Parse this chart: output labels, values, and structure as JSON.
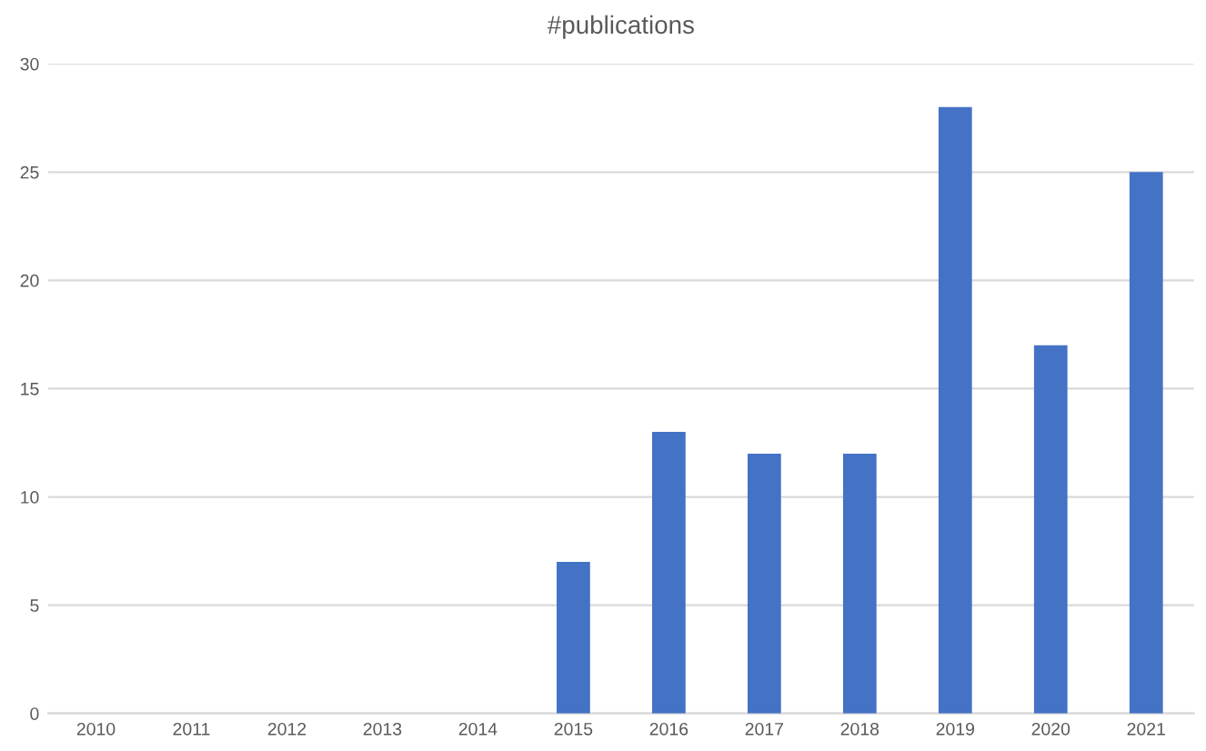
{
  "chart_data": {
    "type": "bar",
    "title": "#publications",
    "categories": [
      "2010",
      "2011",
      "2012",
      "2013",
      "2014",
      "2015",
      "2016",
      "2017",
      "2018",
      "2019",
      "2020",
      "2021"
    ],
    "values": [
      0,
      0,
      0,
      0,
      0,
      7,
      13,
      12,
      12,
      28,
      17,
      25
    ],
    "color": "#4472c4",
    "ylim": [
      0,
      30
    ],
    "yticks": [
      0,
      5,
      10,
      15,
      20,
      25,
      30
    ],
    "grid": "y",
    "legend": false
  }
}
